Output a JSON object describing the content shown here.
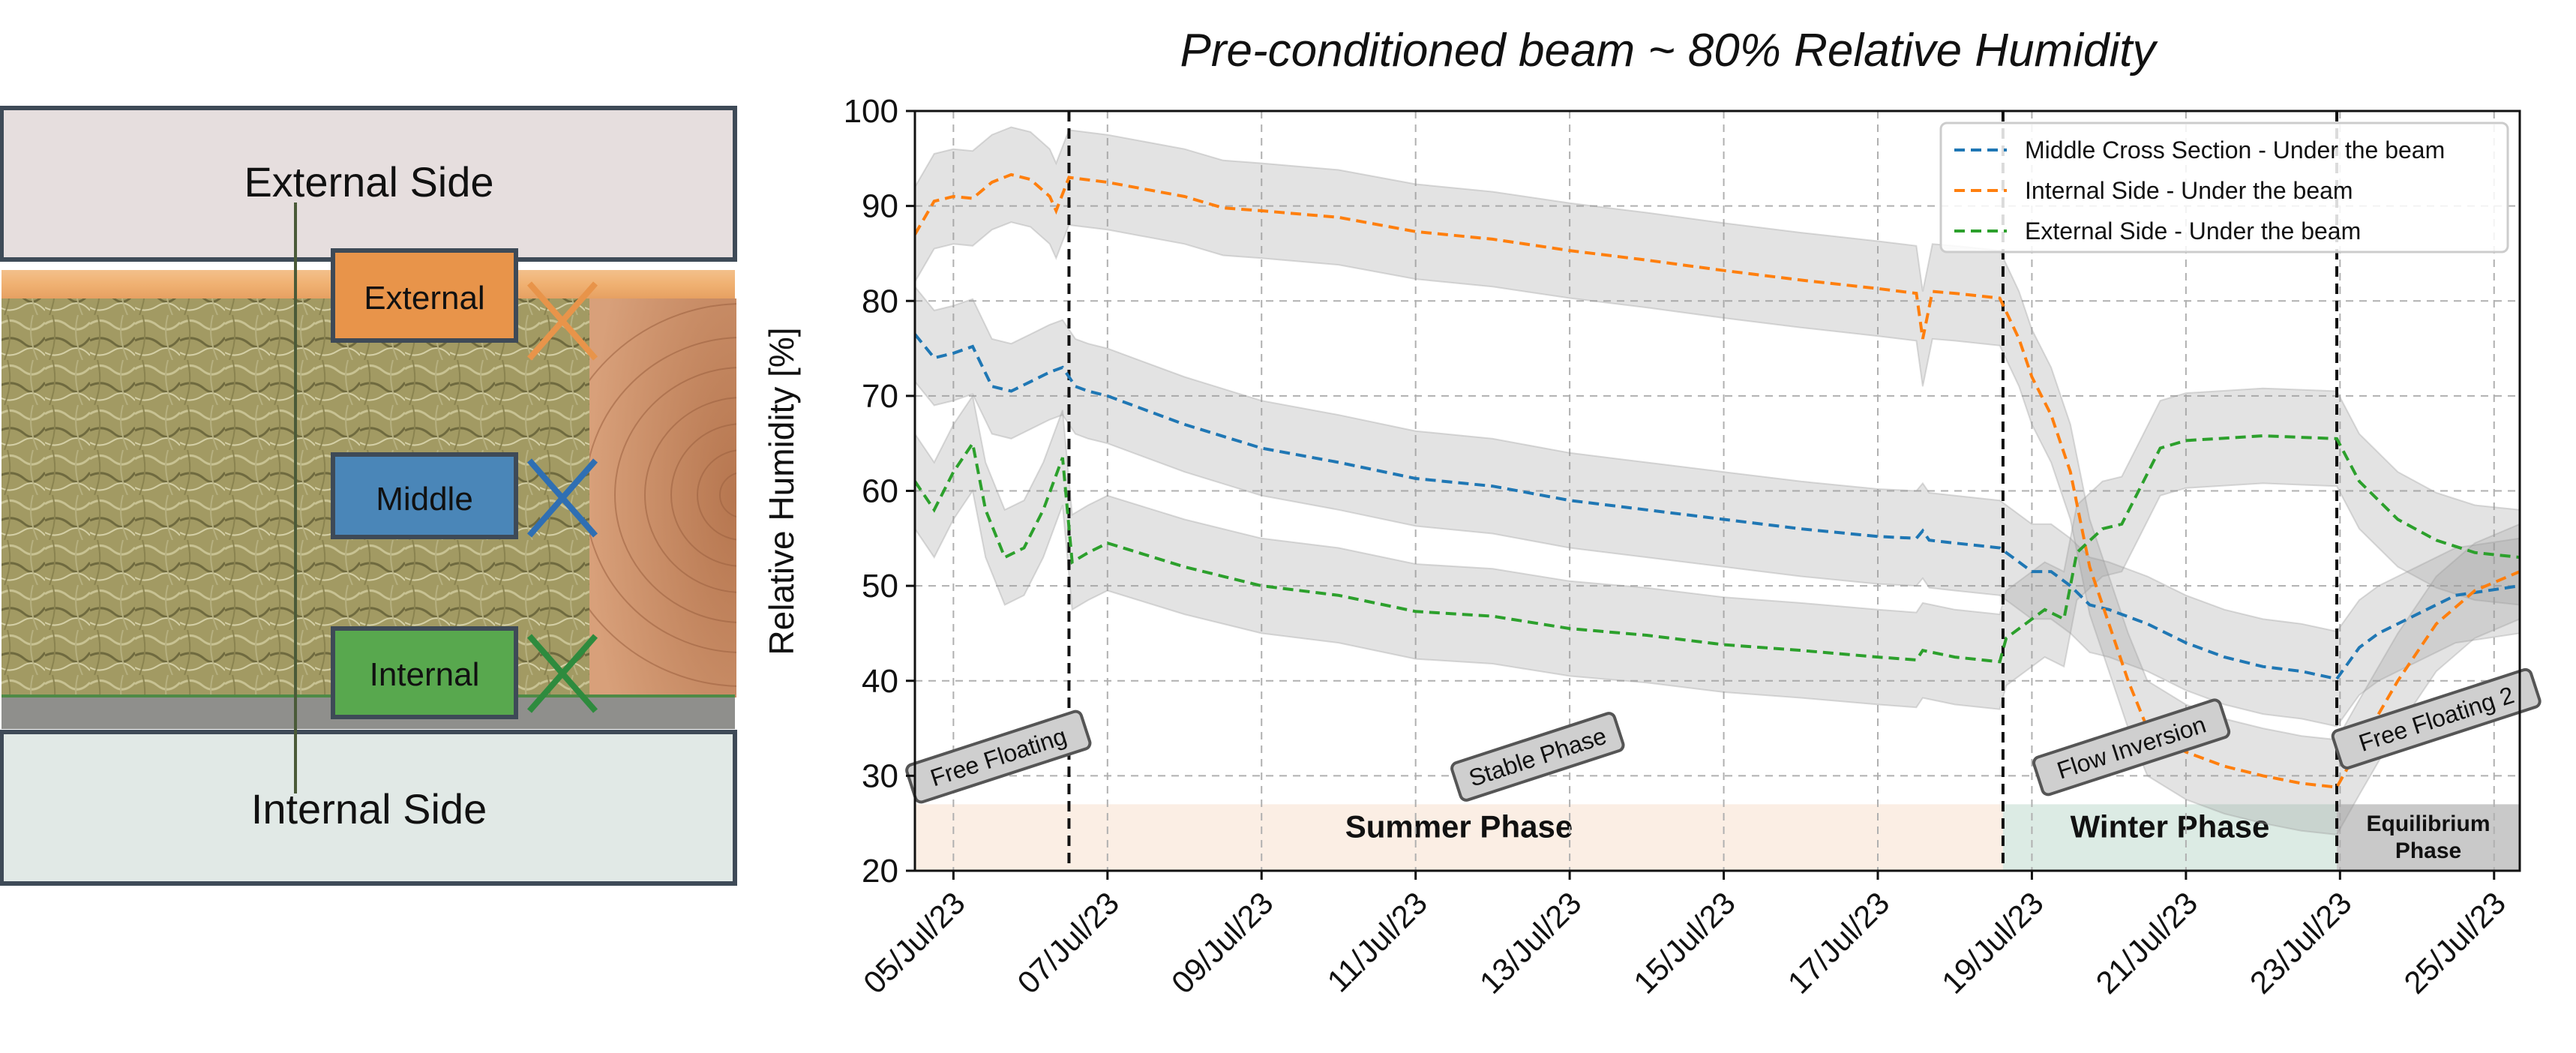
{
  "diagram": {
    "external_side": "External Side",
    "internal_side": "Internal Side",
    "sensors": [
      {
        "label": "External",
        "color": "#e8944a",
        "cross": "#e8944a"
      },
      {
        "label": "Middle",
        "color": "#4a86b8",
        "cross": "#2f6fb3"
      },
      {
        "label": "Internal",
        "color": "#58a84e",
        "cross": "#2e8b3e"
      }
    ]
  },
  "chart_data": {
    "type": "line",
    "title": "Pre-conditioned beam ~ 80% Relative Humidity",
    "xlabel": "",
    "ylabel": "Relative Humidity [%]",
    "ylim": [
      20,
      100
    ],
    "xlim": [
      "2023-07-04T12:00",
      "2023-07-25T08:00"
    ],
    "x_ticks": [
      "05/Jul/23",
      "07/Jul/23",
      "09/Jul/23",
      "11/Jul/23",
      "13/Jul/23",
      "15/Jul/23",
      "17/Jul/23",
      "19/Jul/23",
      "21/Jul/23",
      "23/Jul/23",
      "25/Jul/23"
    ],
    "y_ticks": [
      20,
      30,
      40,
      50,
      60,
      70,
      80,
      90,
      100
    ],
    "grid": true,
    "legend_position": "top-right",
    "uncertainty_band": "±5",
    "vertical_markers": [
      "2023-07-06T12:00",
      "2023-07-18T15:00",
      "2023-07-22T23:00"
    ],
    "phase_bands": [
      {
        "label": "Summer Phase",
        "start": "2023-07-04T12:00",
        "end": "2023-07-18T15:00",
        "color": "#fbeee4"
      },
      {
        "label": "Winter Phase",
        "start": "2023-07-18T15:00",
        "end": "2023-07-22T23:00",
        "color": "#dcebe4"
      },
      {
        "label": "Equilibrium\nPhase",
        "start": "2023-07-22T23:00",
        "end": "2023-07-25T08:00",
        "color": "#c9c9c9"
      }
    ],
    "annotations": [
      {
        "text": "Free Floating",
        "x": "2023-07-05T14:00",
        "y": 32,
        "rotation": -18
      },
      {
        "text": "Stable Phase",
        "x": "2023-07-12T14:00",
        "y": 32,
        "rotation": -18
      },
      {
        "text": "Flow Inversion",
        "x": "2023-07-20T07:00",
        "y": 33,
        "rotation": -18
      },
      {
        "text": "Free Floating 2",
        "x": "2023-07-24T06:00",
        "y": 36,
        "rotation": -18
      }
    ],
    "series": [
      {
        "name": "Middle Cross Section - Under the beam",
        "color": "#1f77b4",
        "points": [
          [
            "2023-07-04T12:00",
            76.5
          ],
          [
            "2023-07-04T18:00",
            74
          ],
          [
            "2023-07-05T00:00",
            74.5
          ],
          [
            "2023-07-05T06:00",
            75.2
          ],
          [
            "2023-07-05T12:00",
            71
          ],
          [
            "2023-07-05T18:00",
            70.5
          ],
          [
            "2023-07-06T00:00",
            71.5
          ],
          [
            "2023-07-06T06:00",
            72.5
          ],
          [
            "2023-07-06T10:00",
            73
          ],
          [
            "2023-07-06T14:00",
            71
          ],
          [
            "2023-07-06T18:00",
            70.5
          ],
          [
            "2023-07-07T00:00",
            70
          ],
          [
            "2023-07-08T00:00",
            67
          ],
          [
            "2023-07-09T00:00",
            64.5
          ],
          [
            "2023-07-10T00:00",
            63
          ],
          [
            "2023-07-11T00:00",
            61.3
          ],
          [
            "2023-07-12T00:00",
            60.5
          ],
          [
            "2023-07-13T00:00",
            59
          ],
          [
            "2023-07-14T00:00",
            58
          ],
          [
            "2023-07-15T00:00",
            57
          ],
          [
            "2023-07-16T00:00",
            56
          ],
          [
            "2023-07-17T00:00",
            55.2
          ],
          [
            "2023-07-17T12:00",
            55
          ],
          [
            "2023-07-17T14:00",
            55.8
          ],
          [
            "2023-07-17T16:00",
            54.8
          ],
          [
            "2023-07-18T00:00",
            54.5
          ],
          [
            "2023-07-18T14:00",
            54
          ],
          [
            "2023-07-18T18:00",
            53
          ],
          [
            "2023-07-19T00:00",
            51.5
          ],
          [
            "2023-07-19T06:00",
            51.5
          ],
          [
            "2023-07-19T12:00",
            50
          ],
          [
            "2023-07-19T18:00",
            48
          ],
          [
            "2023-07-20T00:00",
            47.5
          ],
          [
            "2023-07-20T12:00",
            46
          ],
          [
            "2023-07-21T00:00",
            44
          ],
          [
            "2023-07-21T12:00",
            42.5
          ],
          [
            "2023-07-22T00:00",
            41.5
          ],
          [
            "2023-07-22T12:00",
            41
          ],
          [
            "2023-07-22T23:00",
            40.2
          ],
          [
            "2023-07-23T06:00",
            43.5
          ],
          [
            "2023-07-23T12:00",
            45
          ],
          [
            "2023-07-24T00:00",
            47
          ],
          [
            "2023-07-24T12:00",
            49
          ],
          [
            "2023-07-25T08:00",
            50
          ]
        ]
      },
      {
        "name": "Internal Side -  Under the beam",
        "color": "#ff7f0e",
        "points": [
          [
            "2023-07-04T12:00",
            87
          ],
          [
            "2023-07-04T18:00",
            90.5
          ],
          [
            "2023-07-05T00:00",
            91
          ],
          [
            "2023-07-05T06:00",
            90.8
          ],
          [
            "2023-07-05T12:00",
            92.5
          ],
          [
            "2023-07-05T18:00",
            93.3
          ],
          [
            "2023-07-06T00:00",
            92.8
          ],
          [
            "2023-07-06T06:00",
            91
          ],
          [
            "2023-07-06T08:00",
            89.5
          ],
          [
            "2023-07-06T12:00",
            93
          ],
          [
            "2023-07-07T00:00",
            92.5
          ],
          [
            "2023-07-08T00:00",
            91
          ],
          [
            "2023-07-08T12:00",
            89.8
          ],
          [
            "2023-07-09T00:00",
            89.5
          ],
          [
            "2023-07-10T00:00",
            88.8
          ],
          [
            "2023-07-11T00:00",
            87.3
          ],
          [
            "2023-07-12T00:00",
            86.5
          ],
          [
            "2023-07-13T00:00",
            85.3
          ],
          [
            "2023-07-14T00:00",
            84.3
          ],
          [
            "2023-07-15T00:00",
            83.2
          ],
          [
            "2023-07-16T00:00",
            82.2
          ],
          [
            "2023-07-17T00:00",
            81.3
          ],
          [
            "2023-07-17T12:00",
            80.8
          ],
          [
            "2023-07-17T14:00",
            76
          ],
          [
            "2023-07-17T17:00",
            81
          ],
          [
            "2023-07-18T00:00",
            80.8
          ],
          [
            "2023-07-18T14:00",
            80.3
          ],
          [
            "2023-07-18T20:00",
            76
          ],
          [
            "2023-07-19T00:00",
            72
          ],
          [
            "2023-07-19T06:00",
            68
          ],
          [
            "2023-07-19T12:00",
            62
          ],
          [
            "2023-07-19T18:00",
            52
          ],
          [
            "2023-07-20T00:00",
            46
          ],
          [
            "2023-07-20T06:00",
            40
          ],
          [
            "2023-07-20T12:00",
            35
          ],
          [
            "2023-07-21T00:00",
            32.5
          ],
          [
            "2023-07-21T12:00",
            31
          ],
          [
            "2023-07-22T00:00",
            30
          ],
          [
            "2023-07-22T12:00",
            29.2
          ],
          [
            "2023-07-22T23:00",
            28.8
          ],
          [
            "2023-07-23T06:00",
            33
          ],
          [
            "2023-07-23T18:00",
            40
          ],
          [
            "2023-07-24T06:00",
            46
          ],
          [
            "2023-07-24T18:00",
            49.5
          ],
          [
            "2023-07-25T08:00",
            51.5
          ]
        ]
      },
      {
        "name": "External Side -  Under the beam",
        "color": "#2ca02c",
        "points": [
          [
            "2023-07-04T12:00",
            61
          ],
          [
            "2023-07-04T18:00",
            58
          ],
          [
            "2023-07-05T00:00",
            62
          ],
          [
            "2023-07-05T06:00",
            65
          ],
          [
            "2023-07-05T10:00",
            58
          ],
          [
            "2023-07-05T16:00",
            53
          ],
          [
            "2023-07-05T22:00",
            54
          ],
          [
            "2023-07-06T04:00",
            58
          ],
          [
            "2023-07-06T10:00",
            63.5
          ],
          [
            "2023-07-06T13:00",
            52.5
          ],
          [
            "2023-07-06T18:00",
            53.5
          ],
          [
            "2023-07-07T00:00",
            54.5
          ],
          [
            "2023-07-08T00:00",
            52
          ],
          [
            "2023-07-09T00:00",
            50
          ],
          [
            "2023-07-10T00:00",
            49
          ],
          [
            "2023-07-11T00:00",
            47.3
          ],
          [
            "2023-07-12T00:00",
            46.8
          ],
          [
            "2023-07-13T00:00",
            45.5
          ],
          [
            "2023-07-14T00:00",
            44.8
          ],
          [
            "2023-07-15T00:00",
            43.8
          ],
          [
            "2023-07-16T00:00",
            43.2
          ],
          [
            "2023-07-17T00:00",
            42.5
          ],
          [
            "2023-07-17T12:00",
            42.2
          ],
          [
            "2023-07-17T14:00",
            43.2
          ],
          [
            "2023-07-18T00:00",
            42.5
          ],
          [
            "2023-07-18T14:00",
            42
          ],
          [
            "2023-07-18T16:00",
            44.5
          ],
          [
            "2023-07-18T22:00",
            46
          ],
          [
            "2023-07-19T04:00",
            47.5
          ],
          [
            "2023-07-19T10:00",
            46.5
          ],
          [
            "2023-07-19T14:00",
            53.5
          ],
          [
            "2023-07-19T22:00",
            56
          ],
          [
            "2023-07-20T04:00",
            56.5
          ],
          [
            "2023-07-20T10:00",
            60.5
          ],
          [
            "2023-07-20T16:00",
            64.5
          ],
          [
            "2023-07-21T00:00",
            65.3
          ],
          [
            "2023-07-22T00:00",
            65.8
          ],
          [
            "2023-07-22T23:00",
            65.5
          ],
          [
            "2023-07-23T06:00",
            61
          ],
          [
            "2023-07-23T18:00",
            57
          ],
          [
            "2023-07-24T06:00",
            54.8
          ],
          [
            "2023-07-24T18:00",
            53.5
          ],
          [
            "2023-07-25T08:00",
            53
          ]
        ]
      }
    ]
  }
}
